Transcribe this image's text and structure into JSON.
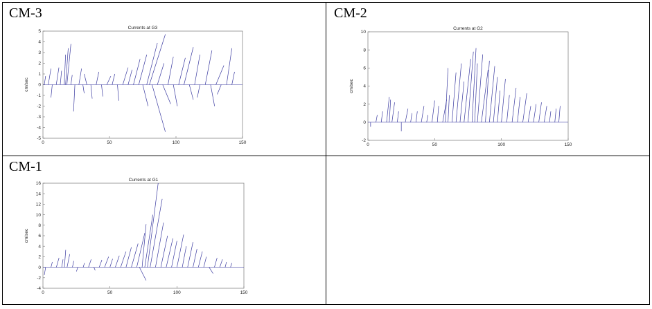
{
  "chart_data": [
    {
      "type": "feather",
      "label": "CM-3",
      "title": "Currents at G3",
      "ylabel": "cm/sec",
      "color": "#3a3aa0",
      "xlim": [
        0,
        150
      ],
      "xticks": [
        0,
        50,
        100,
        150
      ],
      "ylim": [
        -5,
        5
      ],
      "yticks": [
        -5,
        -4,
        -3,
        -2,
        -1,
        0,
        1,
        2,
        3,
        4,
        5
      ],
      "x": [
        1,
        4,
        7,
        10,
        13,
        16,
        17,
        18,
        21,
        24,
        27,
        30,
        33,
        36,
        40,
        44,
        48,
        52,
        56,
        60,
        64,
        68,
        72,
        75,
        78,
        80,
        82,
        86,
        90,
        94,
        98,
        102,
        106,
        110,
        114,
        118,
        122,
        126,
        130,
        134,
        138,
        142
      ],
      "u": [
        1,
        2,
        -1,
        2,
        1,
        1,
        2,
        3,
        1,
        -1,
        2,
        1,
        -2,
        1,
        2,
        1,
        3,
        2,
        1,
        4,
        3,
        5,
        6,
        4,
        8,
        12,
        10,
        5,
        6,
        4,
        3,
        5,
        7,
        3,
        4,
        -2,
        5,
        3,
        6,
        -3,
        4,
        2
      ],
      "v": [
        0.8,
        1.5,
        -1.2,
        1.6,
        1.3,
        2.8,
        3.4,
        3.8,
        0.9,
        -2.5,
        1.5,
        -0.8,
        1.0,
        -1.3,
        1.2,
        -1.1,
        0.8,
        1.0,
        -1.5,
        1.6,
        1.4,
        2.4,
        2.8,
        -2.0,
        3.9,
        4.7,
        -4.4,
        2.0,
        -1.8,
        2.6,
        -2.0,
        2.5,
        3.5,
        -1.4,
        2.8,
        -1.2,
        3.2,
        -2.0,
        1.8,
        -0.9,
        3.4,
        1.2
      ]
    },
    {
      "type": "feather",
      "label": "CM-2",
      "title": "Currents at G2",
      "ylabel": "cm/sec",
      "color": "#3a3aa0",
      "xlim": [
        0,
        150
      ],
      "xticks": [
        0,
        50,
        100,
        150
      ],
      "ylim": [
        -2,
        10
      ],
      "yticks": [
        -2,
        0,
        2,
        4,
        6,
        8,
        10
      ],
      "x": [
        2,
        6,
        10,
        14,
        16,
        18,
        22,
        25,
        28,
        32,
        36,
        40,
        44,
        48,
        52,
        56,
        58,
        60,
        63,
        66,
        69,
        72,
        75,
        78,
        80,
        82,
        85,
        88,
        91,
        94,
        97,
        100,
        104,
        108,
        112,
        116,
        120,
        124,
        128,
        132,
        136,
        140,
        143
      ],
      "u": [
        0,
        1,
        1,
        2,
        1,
        2,
        1,
        0,
        2,
        1,
        1,
        2,
        1,
        2,
        1,
        3,
        2,
        1,
        3,
        4,
        3,
        5,
        4,
        3,
        2,
        4,
        5,
        3,
        4,
        3,
        2,
        3,
        2,
        3,
        2,
        3,
        2,
        2,
        2,
        2,
        1,
        1,
        1
      ],
      "v": [
        -0.5,
        0.8,
        1.2,
        2.8,
        2.5,
        2.2,
        1.2,
        -1.0,
        1.5,
        1.0,
        1.2,
        1.8,
        0.8,
        2.4,
        1.8,
        2.5,
        6.0,
        3.0,
        5.5,
        6.5,
        4.5,
        7.0,
        7.8,
        8.2,
        6.5,
        7.5,
        5.8,
        6.8,
        6.2,
        5.0,
        3.5,
        4.8,
        3.0,
        3.8,
        2.8,
        3.2,
        1.8,
        2.0,
        2.2,
        1.8,
        1.2,
        1.5,
        1.8
      ]
    },
    {
      "type": "feather",
      "label": "CM-1",
      "title": "Currents at G1",
      "ylabel": "cm/sec",
      "color": "#3a3aa0",
      "xlim": [
        0,
        150
      ],
      "xticks": [
        0,
        50,
        100,
        150
      ],
      "ylim": [
        -4,
        16
      ],
      "yticks": [
        -4,
        -2,
        0,
        2,
        4,
        6,
        8,
        10,
        12,
        14,
        16
      ],
      "x": [
        2,
        6,
        10,
        14,
        16,
        18,
        22,
        26,
        30,
        34,
        38,
        42,
        46,
        50,
        54,
        58,
        62,
        66,
        70,
        72,
        74,
        76,
        78,
        80,
        84,
        88,
        92,
        96,
        100,
        104,
        108,
        112,
        116,
        120,
        124,
        128,
        132,
        136,
        140
      ],
      "u": [
        -1,
        1,
        2,
        1,
        1,
        2,
        1,
        -1,
        1,
        2,
        1,
        2,
        3,
        2,
        3,
        4,
        4,
        5,
        6,
        5,
        3,
        6,
        8,
        9,
        6,
        5,
        5,
        4,
        5,
        3,
        4,
        3,
        3,
        2,
        3,
        2,
        2,
        1,
        1
      ],
      "v": [
        -1.5,
        1.0,
        1.8,
        1.5,
        3.3,
        2.5,
        1.2,
        -0.8,
        0.8,
        1.5,
        -0.6,
        1.4,
        2.0,
        1.6,
        2.2,
        3.0,
        3.8,
        4.5,
        6.5,
        -2.5,
        8.2,
        10.0,
        16.0,
        13.0,
        8.5,
        6.0,
        5.5,
        5.0,
        6.2,
        4.0,
        4.8,
        3.5,
        3.0,
        2.0,
        -1.2,
        1.8,
        1.5,
        1.0,
        0.8
      ]
    }
  ]
}
